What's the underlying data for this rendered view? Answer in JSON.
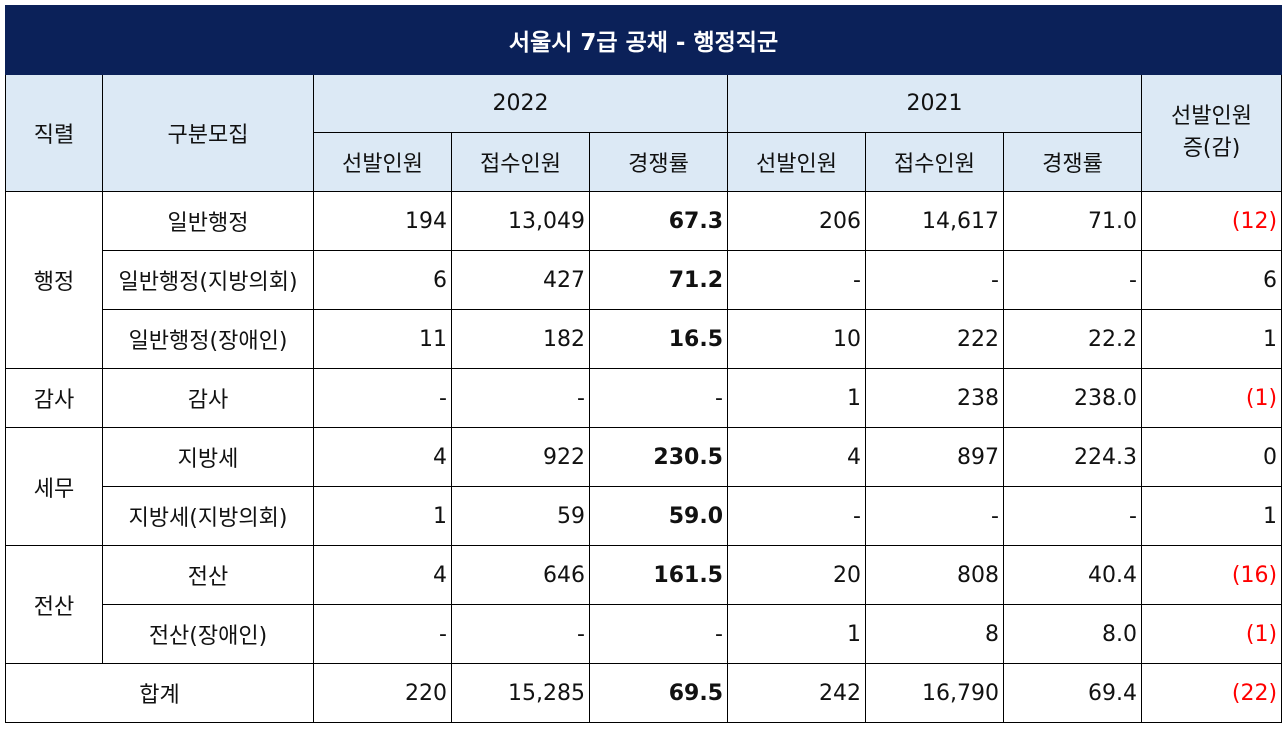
{
  "title": "서울시 7급 공채 - 행정직군",
  "header": {
    "col_series": "직렬",
    "col_category": "구분모집",
    "year_2022": "2022",
    "year_2021": "2021",
    "change_line1": "선발인원",
    "change_line2": "증(감)",
    "sub_selected": "선발인원",
    "sub_applied": "접수인원",
    "sub_ratio": "경쟁률"
  },
  "groups": {
    "admin": "행정",
    "audit": "감사",
    "tax": "세무",
    "it": "전산"
  },
  "rows": [
    {
      "name": "일반행정",
      "s22": "194",
      "a22": "13,049",
      "r22": "67.3",
      "s21": "206",
      "a21": "14,617",
      "r21": "71.0",
      "chg": "(12)"
    },
    {
      "name": "일반행정(지방의회)",
      "s22": "6",
      "a22": "427",
      "r22": "71.2",
      "s21": "-",
      "a21": "-",
      "r21": "-",
      "chg": "6"
    },
    {
      "name": "일반행정(장애인)",
      "s22": "11",
      "a22": "182",
      "r22": "16.5",
      "s21": "10",
      "a21": "222",
      "r21": "22.2",
      "chg": "1"
    },
    {
      "name": "감사",
      "s22": "-",
      "a22": "-",
      "r22": "-",
      "s21": "1",
      "a21": "238",
      "r21": "238.0",
      "chg": "(1)"
    },
    {
      "name": "지방세",
      "s22": "4",
      "a22": "922",
      "r22": "230.5",
      "s21": "4",
      "a21": "897",
      "r21": "224.3",
      "chg": "0"
    },
    {
      "name": "지방세(지방의회)",
      "s22": "1",
      "a22": "59",
      "r22": "59.0",
      "s21": "-",
      "a21": "-",
      "r21": "-",
      "chg": "1"
    },
    {
      "name": "전산",
      "s22": "4",
      "a22": "646",
      "r22": "161.5",
      "s21": "20",
      "a21": "808",
      "r21": "40.4",
      "chg": "(16)"
    },
    {
      "name": "전산(장애인)",
      "s22": "-",
      "a22": "-",
      "r22": "-",
      "s21": "1",
      "a21": "8",
      "r21": "8.0",
      "chg": "(1)"
    }
  ],
  "total": {
    "name": "합계",
    "s22": "220",
    "a22": "15,285",
    "r22": "69.5",
    "s21": "242",
    "a21": "16,790",
    "r21": "69.4",
    "chg": "(22)"
  },
  "colors": {
    "title_bg": "#0b2159",
    "header_bg": "#dce9f5",
    "negative": "#ff0000"
  }
}
